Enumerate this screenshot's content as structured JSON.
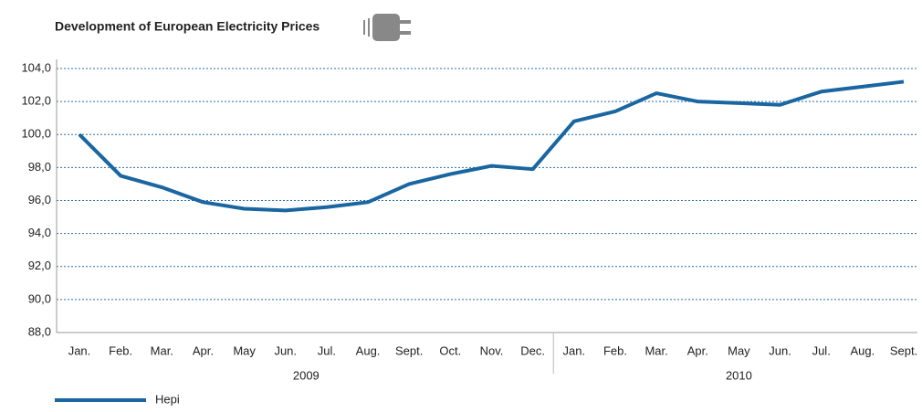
{
  "chart_data": {
    "type": "line",
    "title": "Development of European Electricity Prices",
    "categories": [
      "Jan.",
      "Feb.",
      "Mar.",
      "Apr.",
      "May",
      "Jun.",
      "Jul.",
      "Aug.",
      "Sept.",
      "Oct.",
      "Nov.",
      "Dec.",
      "Jan.",
      "Feb.",
      "Mar.",
      "Apr.",
      "May",
      "Jun.",
      "Jul.",
      "Aug.",
      "Sept."
    ],
    "groups": [
      {
        "name": "2009",
        "count": 12
      },
      {
        "name": "2010",
        "count": 9
      }
    ],
    "series": [
      {
        "name": "Hepi",
        "color": "#1a66a0",
        "values": [
          100.0,
          97.5,
          96.8,
          95.9,
          95.5,
          95.4,
          95.6,
          95.9,
          97.0,
          97.6,
          98.1,
          97.9,
          100.8,
          101.4,
          102.5,
          102.0,
          101.9,
          101.8,
          102.6,
          102.9,
          103.2
        ]
      }
    ],
    "ylim": [
      88,
      104
    ],
    "yticks": [
      {
        "value": 88,
        "label": "88,0"
      },
      {
        "value": 90,
        "label": "90,0"
      },
      {
        "value": 92,
        "label": "92,0"
      },
      {
        "value": 94,
        "label": "94,0"
      },
      {
        "value": 96,
        "label": "96,0"
      },
      {
        "value": 98,
        "label": "98,0"
      },
      {
        "value": 100,
        "label": "100,0"
      },
      {
        "value": 102,
        "label": "102,0"
      },
      {
        "value": 104,
        "label": "104,0"
      }
    ],
    "grid": true
  }
}
